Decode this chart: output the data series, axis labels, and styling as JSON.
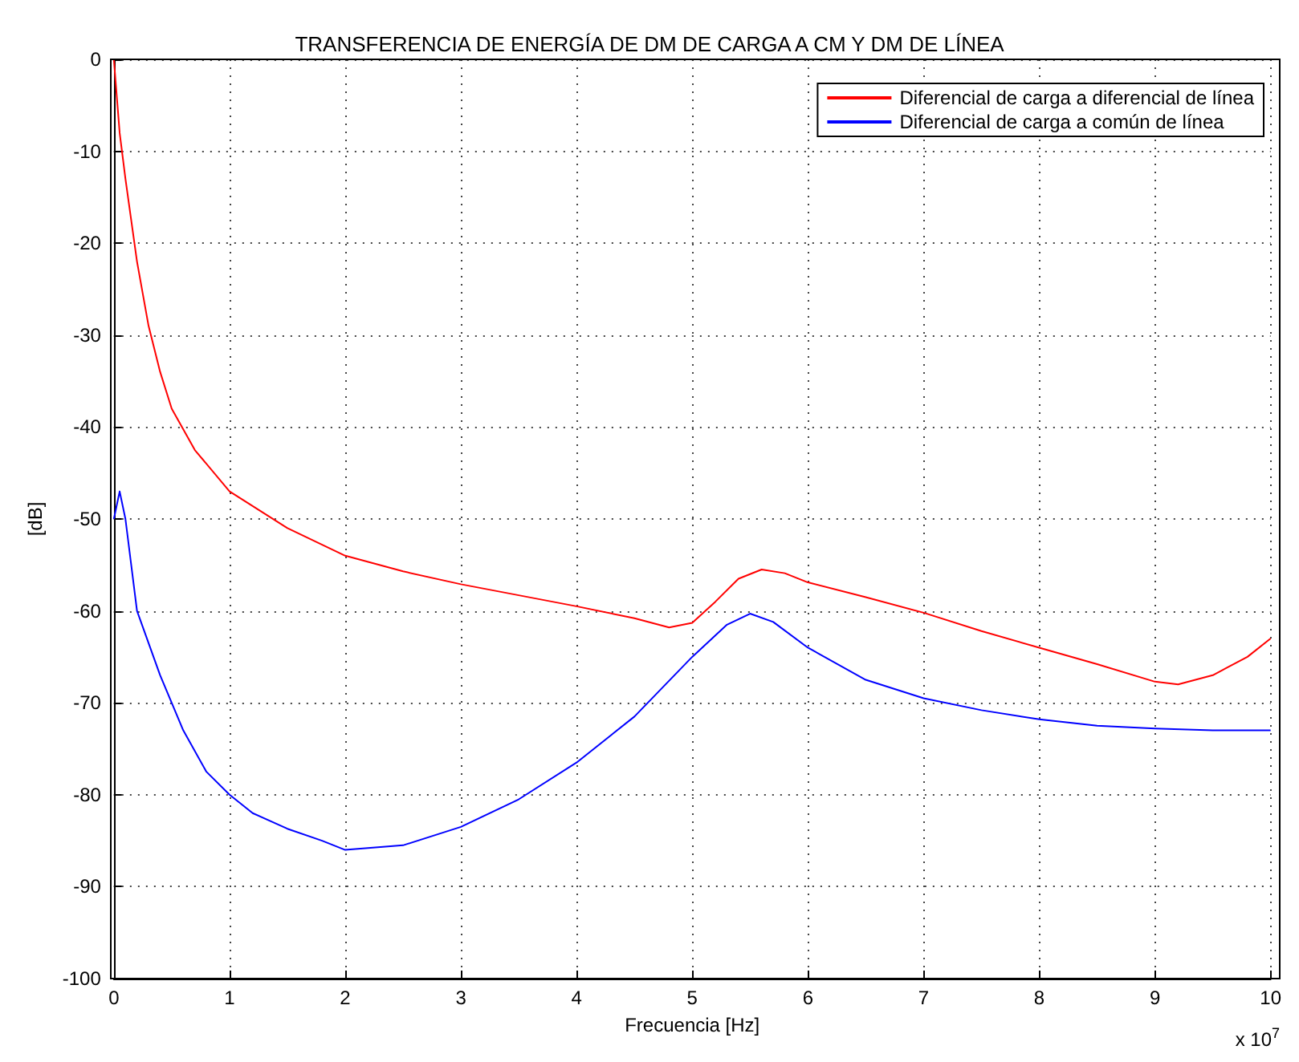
{
  "chart_data": {
    "type": "line",
    "title": "TRANSFERENCIA DE ENERGÍA DE DM DE CARGA A CM Y DM DE LÍNEA",
    "xlabel": "Frecuencia [Hz]",
    "ylabel": "[dB]",
    "annotations": [
      "x 10$^{7}$"
    ],
    "xlim": [
      0,
      10
    ],
    "xticks": [
      0,
      1,
      2,
      3,
      4,
      5,
      6,
      7,
      8,
      9,
      10
    ],
    "ylim": [
      -100,
      0
    ],
    "yticks": [
      -100,
      -90,
      -80,
      -70,
      -60,
      -50,
      -40,
      -30,
      -20,
      -10,
      0
    ],
    "grid": true,
    "legend": "top right",
    "marker": "none",
    "line_style": "solid",
    "series": [
      {
        "name": "Diferencial de carga a diferencial de línea",
        "color": "#ff0000",
        "x": [
          0,
          0.05,
          0.1,
          0.2,
          0.3,
          0.4,
          0.5,
          0.7,
          1,
          1.5,
          2,
          2.5,
          3,
          3.5,
          4,
          4.5,
          4.8,
          5,
          5.2,
          5.4,
          5.6,
          5.8,
          6,
          6.5,
          7,
          7.5,
          8,
          8.5,
          9,
          9.2,
          9.5,
          9.8,
          10
        ],
        "values": [
          0,
          -8,
          -13,
          -22,
          -29,
          -34,
          -38,
          -42.5,
          -47,
          -51,
          -54,
          -55.7,
          -57.1,
          -58.3,
          -59.5,
          -60.8,
          -61.8,
          -61.3,
          -59,
          -56.5,
          -55.5,
          -55.9,
          -56.9,
          -58.5,
          -60.2,
          -62.2,
          -64,
          -65.8,
          -67.7,
          -68,
          -67,
          -65,
          -63
        ]
      },
      {
        "name": "Diferencial de carga a común de línea",
        "color": "#0000ff",
        "x": [
          0,
          0.05,
          0.1,
          0.2,
          0.4,
          0.6,
          0.8,
          1,
          1.2,
          1.5,
          1.8,
          2,
          2.5,
          3,
          3.5,
          4,
          4.5,
          5,
          5.3,
          5.5,
          5.7,
          6,
          6.5,
          7,
          7.5,
          8,
          8.5,
          9,
          9.5,
          10
        ],
        "values": [
          -50,
          -47,
          -50,
          -60,
          -67,
          -73,
          -77.5,
          -80,
          -82,
          -83.7,
          -85,
          -86,
          -85.5,
          -83.5,
          -80.5,
          -76.5,
          -71.5,
          -65,
          -61.5,
          -60.3,
          -61.2,
          -64,
          -67.5,
          -69.5,
          -70.8,
          -71.8,
          -72.5,
          -72.8,
          -73,
          -73
        ]
      }
    ]
  }
}
